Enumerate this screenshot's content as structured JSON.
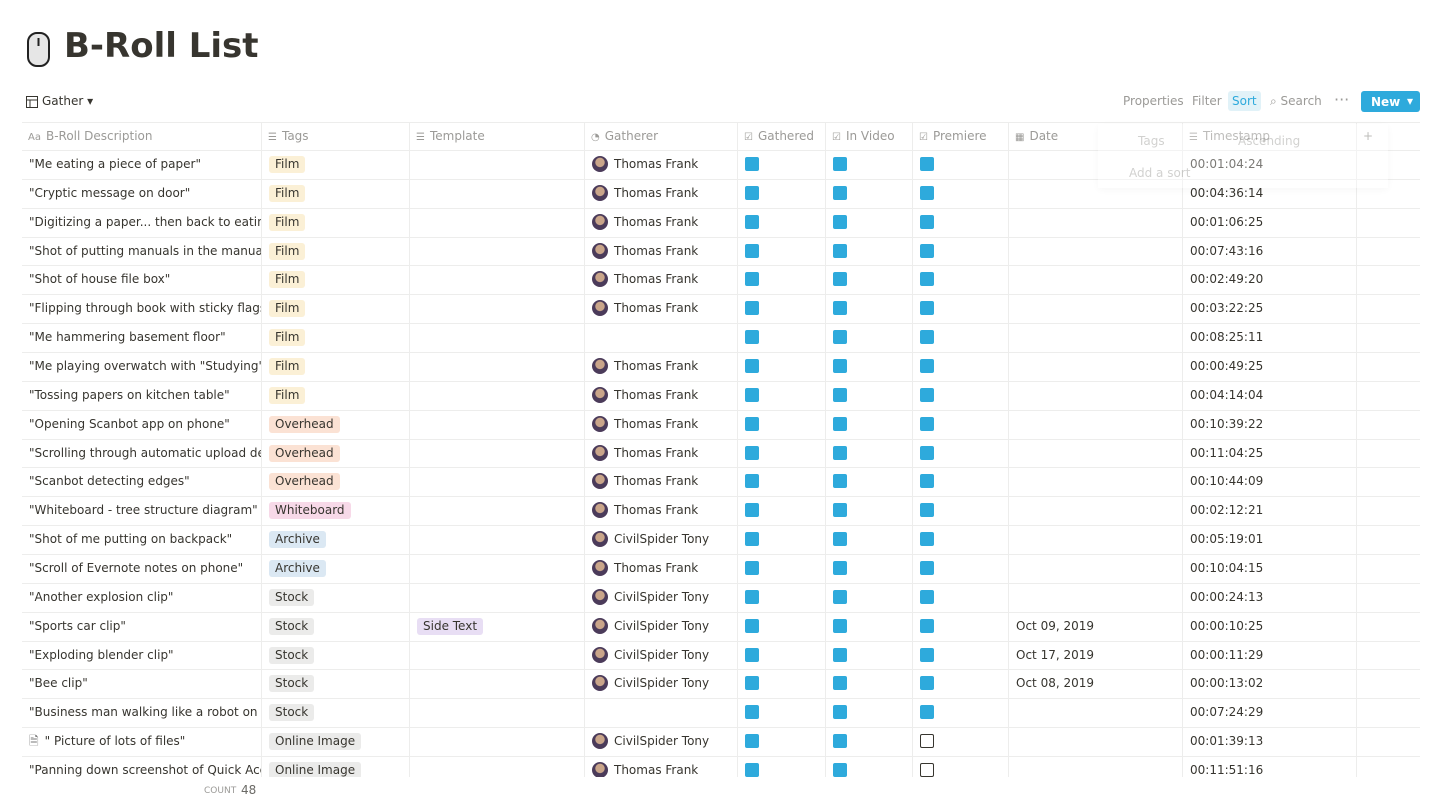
{
  "header": {
    "title": "B-Roll List"
  },
  "toolbar": {
    "view": "Gather",
    "items": [
      "Properties",
      "Filter",
      "Sort",
      "Search"
    ],
    "new_button": "New"
  },
  "table": {
    "columns": [
      "B-Roll Description",
      "Tags",
      "Template",
      "Gatherer",
      "Gathered",
      "In Video",
      "Premiere",
      "Date",
      "Timestamp"
    ],
    "rows": [
      {
        "description": "\"Me eating a piece of paper\"",
        "tag": {
          "label": "Film",
          "color": "#fbf0d6"
        },
        "template": null,
        "gatherer": "Thomas Frank",
        "gathered": true,
        "in_video": true,
        "premiere": true,
        "date": null,
        "timestamp": "00:01:04:24"
      },
      {
        "description": "\"Cryptic message on door\"",
        "tag": {
          "label": "Film",
          "color": "#fbf0d6"
        },
        "template": null,
        "gatherer": "Thomas Frank",
        "gathered": true,
        "in_video": true,
        "premiere": true,
        "date": null,
        "timestamp": "00:04:36:14"
      },
      {
        "description": "\"Digitizing a paper... then back to eating cl",
        "tag": {
          "label": "Film",
          "color": "#fbf0d6"
        },
        "template": null,
        "gatherer": "Thomas Frank",
        "gathered": true,
        "in_video": true,
        "premiere": true,
        "date": null,
        "timestamp": "00:01:06:25"
      },
      {
        "description": "\"Shot of putting manuals in the manuals b",
        "tag": {
          "label": "Film",
          "color": "#fbf0d6"
        },
        "template": null,
        "gatherer": "Thomas Frank",
        "gathered": true,
        "in_video": true,
        "premiere": true,
        "date": null,
        "timestamp": "00:07:43:16"
      },
      {
        "description": "\"Shot of house file box\"",
        "tag": {
          "label": "Film",
          "color": "#fbf0d6"
        },
        "template": null,
        "gatherer": "Thomas Frank",
        "gathered": true,
        "in_video": true,
        "premiere": true,
        "date": null,
        "timestamp": "00:02:49:20"
      },
      {
        "description": "\"Flipping through book with sticky flags\"",
        "tag": {
          "label": "Film",
          "color": "#fbf0d6"
        },
        "template": null,
        "gatherer": "Thomas Frank",
        "gathered": true,
        "in_video": true,
        "premiere": true,
        "date": null,
        "timestamp": "00:03:22:25"
      },
      {
        "description": "\"Me hammering basement floor\"",
        "tag": {
          "label": "Film",
          "color": "#fbf0d6"
        },
        "template": null,
        "gatherer": null,
        "gathered": true,
        "in_video": true,
        "premiere": true,
        "date": null,
        "timestamp": "00:08:25:11"
      },
      {
        "description": "\"Me playing overwatch with \"Studying\" lal",
        "tag": {
          "label": "Film",
          "color": "#fbf0d6"
        },
        "template": null,
        "gatherer": "Thomas Frank",
        "gathered": true,
        "in_video": true,
        "premiere": true,
        "date": null,
        "timestamp": "00:00:49:25"
      },
      {
        "description": "\"Tossing papers on kitchen table\"",
        "tag": {
          "label": "Film",
          "color": "#fbf0d6"
        },
        "template": null,
        "gatherer": "Thomas Frank",
        "gathered": true,
        "in_video": true,
        "premiere": true,
        "date": null,
        "timestamp": "00:04:14:04"
      },
      {
        "description": "\"Opening Scanbot app on phone\"",
        "tag": {
          "label": "Overhead",
          "color": "#fbe2d4"
        },
        "template": null,
        "gatherer": "Thomas Frank",
        "gathered": true,
        "in_video": true,
        "premiere": true,
        "date": null,
        "timestamp": "00:10:39:22"
      },
      {
        "description": "\"Scrolling through automatic upload desti",
        "tag": {
          "label": "Overhead",
          "color": "#fbe2d4"
        },
        "template": null,
        "gatherer": "Thomas Frank",
        "gathered": true,
        "in_video": true,
        "premiere": true,
        "date": null,
        "timestamp": "00:11:04:25"
      },
      {
        "description": "\"Scanbot detecting edges\"",
        "tag": {
          "label": "Overhead",
          "color": "#fbe2d4"
        },
        "template": null,
        "gatherer": "Thomas Frank",
        "gathered": true,
        "in_video": true,
        "premiere": true,
        "date": null,
        "timestamp": "00:10:44:09"
      },
      {
        "description": "\"Whiteboard - tree structure diagram\"",
        "tag": {
          "label": "Whiteboard",
          "color": "#f7d9e8"
        },
        "template": null,
        "gatherer": "Thomas Frank",
        "gathered": true,
        "in_video": true,
        "premiere": true,
        "date": null,
        "timestamp": "00:02:12:21"
      },
      {
        "description": "\"Shot of me putting on backpack\"",
        "tag": {
          "label": "Archive",
          "color": "#dbe8f3"
        },
        "template": null,
        "gatherer": "CivilSpider Tony",
        "gathered": true,
        "in_video": true,
        "premiere": true,
        "date": null,
        "timestamp": "00:05:19:01"
      },
      {
        "description": "\"Scroll of Evernote notes on phone\"",
        "tag": {
          "label": "Archive",
          "color": "#dbe8f3"
        },
        "template": null,
        "gatherer": "Thomas Frank",
        "gathered": true,
        "in_video": true,
        "premiere": true,
        "date": null,
        "timestamp": "00:10:04:15"
      },
      {
        "description": "\"Another explosion clip\"",
        "tag": {
          "label": "Stock",
          "color": "#ebebea"
        },
        "template": null,
        "gatherer": "CivilSpider Tony",
        "gathered": true,
        "in_video": true,
        "premiere": true,
        "date": null,
        "timestamp": "00:00:24:13"
      },
      {
        "description": "\"Sports car clip\"",
        "tag": {
          "label": "Stock",
          "color": "#ebebea"
        },
        "template": {
          "label": "Side Text",
          "color": "#e8def4"
        },
        "gatherer": "CivilSpider Tony",
        "gathered": true,
        "in_video": true,
        "premiere": true,
        "date": "Oct 09, 2019",
        "timestamp": "00:00:10:25"
      },
      {
        "description": "\"Exploding blender clip\"",
        "tag": {
          "label": "Stock",
          "color": "#ebebea"
        },
        "template": null,
        "gatherer": "CivilSpider Tony",
        "gathered": true,
        "in_video": true,
        "premiere": true,
        "date": "Oct 17, 2019",
        "timestamp": "00:00:11:29"
      },
      {
        "description": "\"Bee clip\"",
        "tag": {
          "label": "Stock",
          "color": "#ebebea"
        },
        "template": null,
        "gatherer": "CivilSpider Tony",
        "gathered": true,
        "in_video": true,
        "premiere": true,
        "date": "Oct 08, 2019",
        "timestamp": "00:00:13:02"
      },
      {
        "description": "\"Business man walking like a robot on the",
        "tag": {
          "label": "Stock",
          "color": "#ebebea"
        },
        "template": null,
        "gatherer": null,
        "gathered": true,
        "in_video": true,
        "premiere": true,
        "date": null,
        "timestamp": "00:07:24:29"
      },
      {
        "description": "\" Picture of lots of files\"",
        "tag": {
          "label": "Online Image",
          "color": "#ebebea"
        },
        "template": null,
        "gatherer": "CivilSpider Tony",
        "gathered": true,
        "in_video": true,
        "premiere": false,
        "date": null,
        "timestamp": "00:01:39:13",
        "page_icon": true
      },
      {
        "description": "\"Panning down screenshot of Quick Acces",
        "tag": {
          "label": "Online Image",
          "color": "#ebebea"
        },
        "template": null,
        "gatherer": "Thomas Frank",
        "gathered": true,
        "in_video": true,
        "premiere": false,
        "date": null,
        "timestamp": "00:11:51:16"
      }
    ],
    "footer": {
      "label": "COUNT",
      "value": 48
    }
  },
  "sort_popup": {
    "property": "Tags",
    "direction": "Ascending",
    "add": "Add a sort"
  }
}
